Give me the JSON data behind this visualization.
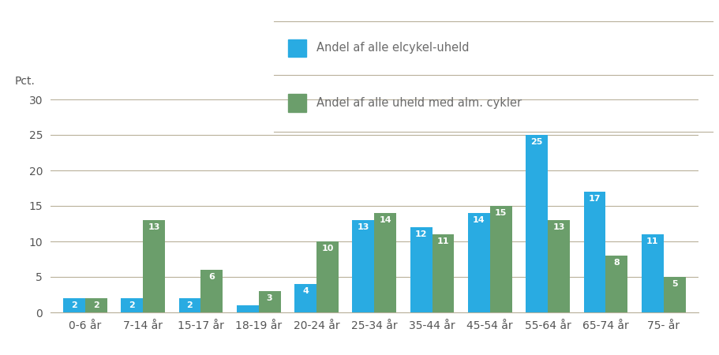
{
  "categories": [
    "0-6 år",
    "7-14 år",
    "15-17 år",
    "18-19 år",
    "20-24 år",
    "25-34 år",
    "35-44 år",
    "45-54 år",
    "55-64 år",
    "65-74 år",
    "75- år"
  ],
  "elcykel": [
    2,
    2,
    2,
    1,
    4,
    13,
    12,
    14,
    25,
    17,
    11
  ],
  "alm_cykler": [
    2,
    13,
    6,
    3,
    10,
    14,
    11,
    15,
    13,
    8,
    5
  ],
  "elcykel_color": "#29ABE2",
  "alm_color": "#6B9E6B",
  "legend_elcykel": "Andel af alle elcykel-uheld",
  "legend_alm": "Andel af alle uheld med alm. cykler",
  "ylabel": "Pct.",
  "ylim": [
    0,
    30
  ],
  "yticks": [
    0,
    5,
    10,
    15,
    20,
    25,
    30
  ],
  "background_color": "#ffffff",
  "grid_color": "#b8b09a",
  "bar_label_color": "#ffffff",
  "bar_label_fontsize": 8,
  "axis_label_fontsize": 10,
  "tick_label_color": "#555555",
  "legend_fontsize": 10.5,
  "legend_text_color": "#6b6b6b",
  "bar_width": 0.38
}
